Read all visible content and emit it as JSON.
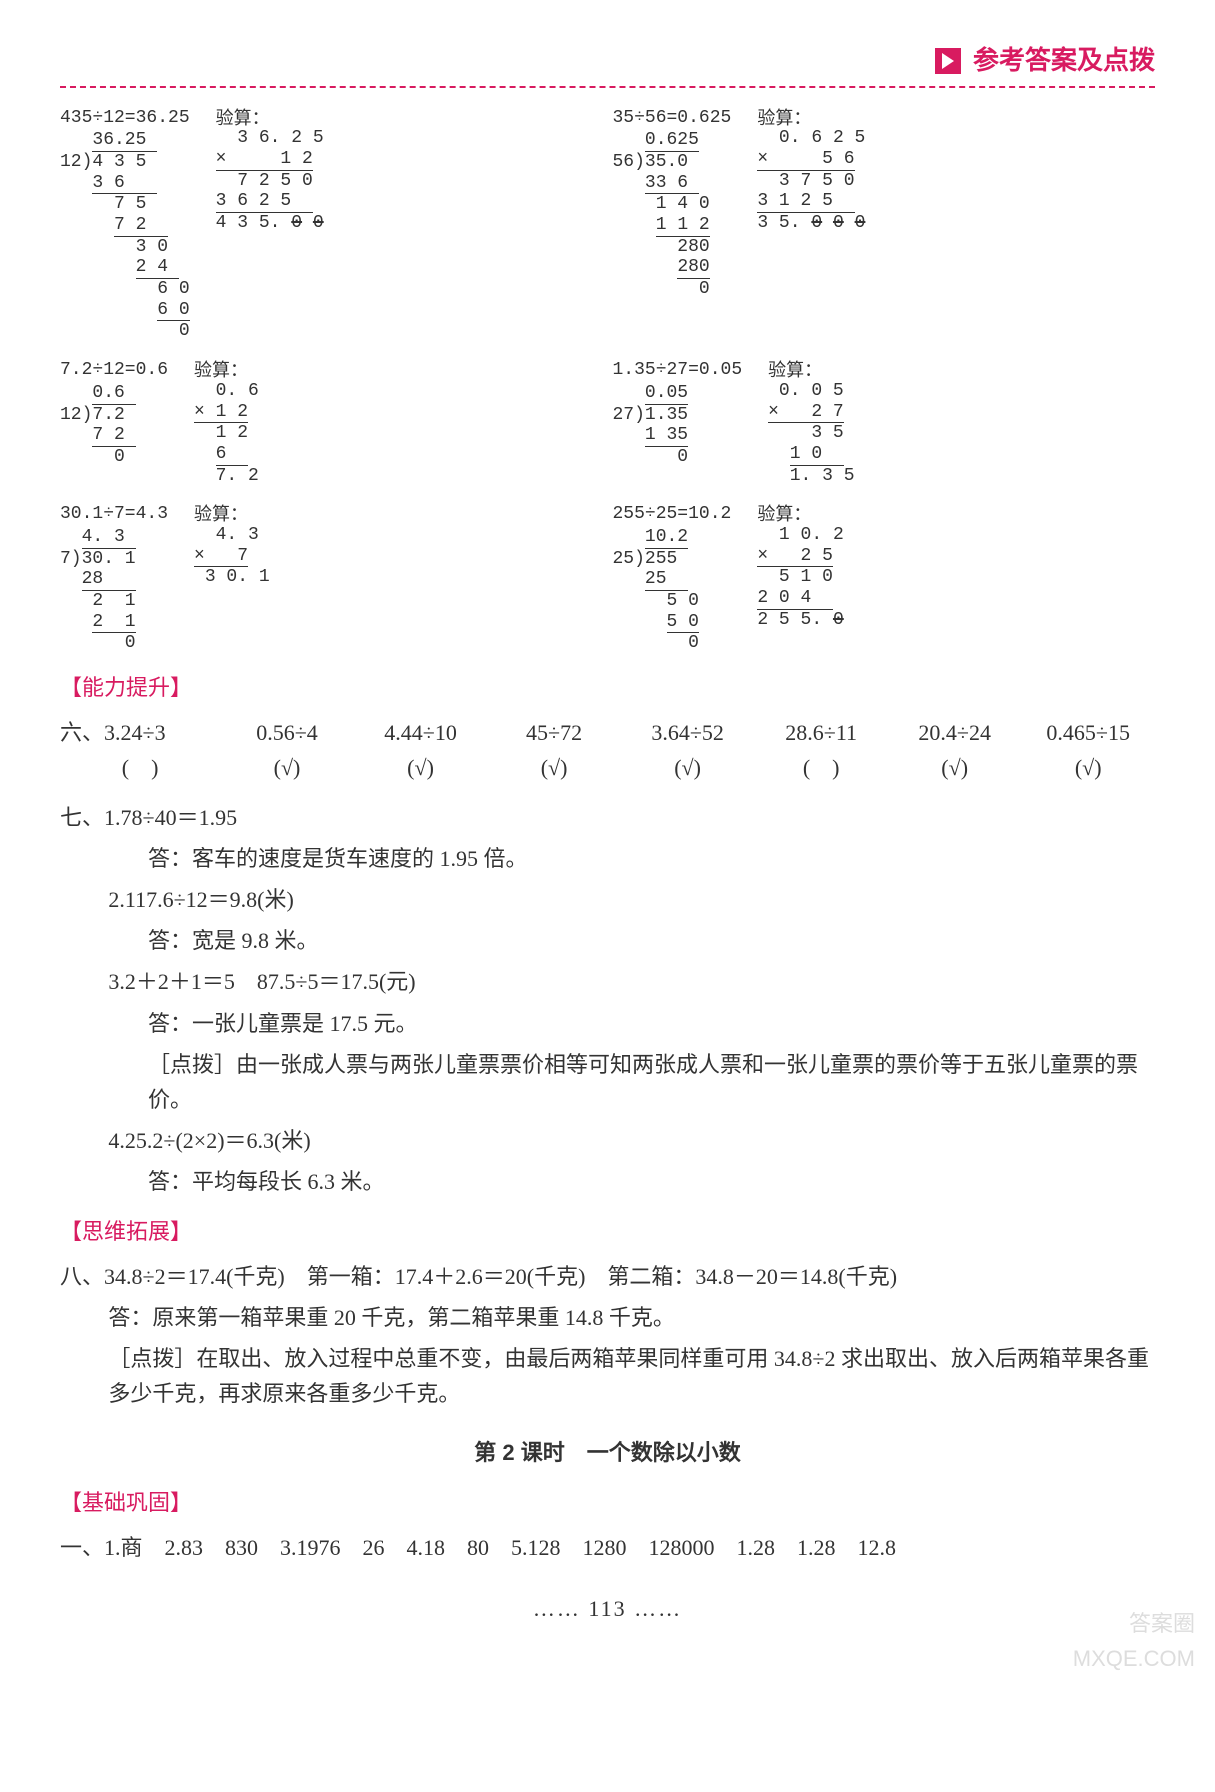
{
  "header": {
    "title": "参考答案及点拨"
  },
  "calc": [
    {
      "left_eq": "435÷12=36.25",
      "left_div": "   <u>36.25 </u>\n12)4 3 5\n   <u>3 6   </u>\n     7 5\n     <u>7 2  </u>\n       3 0\n       <u>2 4 </u>\n         6 0\n         <u>6 0</u>\n           0",
      "left_check_label": "验算：",
      "left_check": "  3 6. 2 5\n<u>×     1 2</u>\n  7 2 5 0\n<u>3 6 2 5  </u>\n4 3 5. 0̸ 0̸",
      "right_eq": "35÷56=0.625",
      "right_div": "   <u>0.625</u>\n56)35.0\n   <u>33 6 </u>\n    1 4 0\n    <u>1 1 2</u>\n      280\n      <u>280</u>\n        0",
      "right_check_label": "验算：",
      "right_check": "  0. 6 2 5\n<u>×     5 6</u>\n  3 7 5 0\n<u>3 1 2 5  </u>\n3 5. 0̸ 0̸ 0̸"
    },
    {
      "left_eq": "7.2÷12=0.6",
      "left_div": "   <u>0.6 </u>\n12)7.2\n   <u>7 2 </u>\n     0",
      "left_check_label": "验算：",
      "left_check": "  0. 6\n<u>× 1 2</u>\n  1 2\n  <u>6  </u>\n  7. 2",
      "right_eq": "1.35÷27=0.05",
      "right_div": "   <u>0.05</u>\n27)1.35\n   <u>1 35</u>\n      0",
      "right_check_label": "验算：",
      "right_check": " 0. 0 5\n<u>×   2 7</u>\n    3 5\n  <u>1 0  </u>\n  1. 3 5"
    },
    {
      "left_eq": "30.1÷7=4.3",
      "left_div": "  <u>4. 3 </u>\n7)30. 1\n  <u>28   </u>\n   2  1\n   <u>2  1</u>\n      0",
      "left_check_label": "验算：",
      "left_check": "  4. 3\n<u>×   7</u>\n 3 0. 1",
      "right_eq": "255÷25=10.2",
      "right_div": "   <u>10.2</u>\n25)255\n   <u>25  </u>\n     5 0\n     <u>5 0</u>\n       0",
      "right_check_label": "验算：",
      "right_check": "  1 0. 2\n<u>×   2 5</u>\n  5 1 0\n<u>2 0 4  </u>\n2 5 5. 0̸"
    }
  ],
  "sections": {
    "ability": "【能力提升】",
    "thinking": "【思维拓展】",
    "basic": "【基础巩固】"
  },
  "q6": {
    "prefix": "六、",
    "items": [
      "3.24÷3",
      "0.56÷4",
      "4.44÷10",
      "45÷72",
      "3.64÷52",
      "28.6÷11",
      "20.4÷24",
      "0.465÷15"
    ],
    "marks": [
      "(　)",
      "(√)",
      "(√)",
      "(√)",
      "(√)",
      "(　)",
      "(√)",
      "(√)"
    ]
  },
  "q7": {
    "prefix": "七、",
    "items": [
      {
        "expr": "1.78÷40＝1.95",
        "answer": "答：客车的速度是货车速度的 1.95 倍。"
      },
      {
        "expr": "2.117.6÷12＝9.8(米)",
        "answer": "答：宽是 9.8 米。"
      },
      {
        "expr": "3.2＋2＋1＝5　87.5÷5＝17.5(元)",
        "answer": "答：一张儿童票是 17.5 元。",
        "tip": "［点拨］由一张成人票与两张儿童票票价相等可知两张成人票和一张儿童票的票价等于五张儿童票的票价。"
      },
      {
        "expr": "4.25.2÷(2×2)＝6.3(米)",
        "answer": "答：平均每段长 6.3 米。"
      }
    ]
  },
  "q8": {
    "prefix": "八、",
    "expr": "34.8÷2＝17.4(千克)　第一箱：17.4＋2.6＝20(千克)　第二箱：34.8－20＝14.8(千克)",
    "answer": "答：原来第一箱苹果重 20 千克，第二箱苹果重 14.8 千克。",
    "tip": "［点拨］在取出、放入过程中总重不变，由最后两箱苹果同样重可用 34.8÷2 求出取出、放入后两箱苹果各重多少千克，再求原来各重多少千克。"
  },
  "lesson": "第 2 课时　一个数除以小数",
  "q1": {
    "prefix": "一、",
    "text": "1.商　2.83　830　3.1976　26　4.18　80　5.128　1280　128000　1.28　1.28　12.8"
  },
  "page": "…… 113 ……",
  "watermark": {
    "l1": "答案圈",
    "l2": "MXQE.COM"
  }
}
